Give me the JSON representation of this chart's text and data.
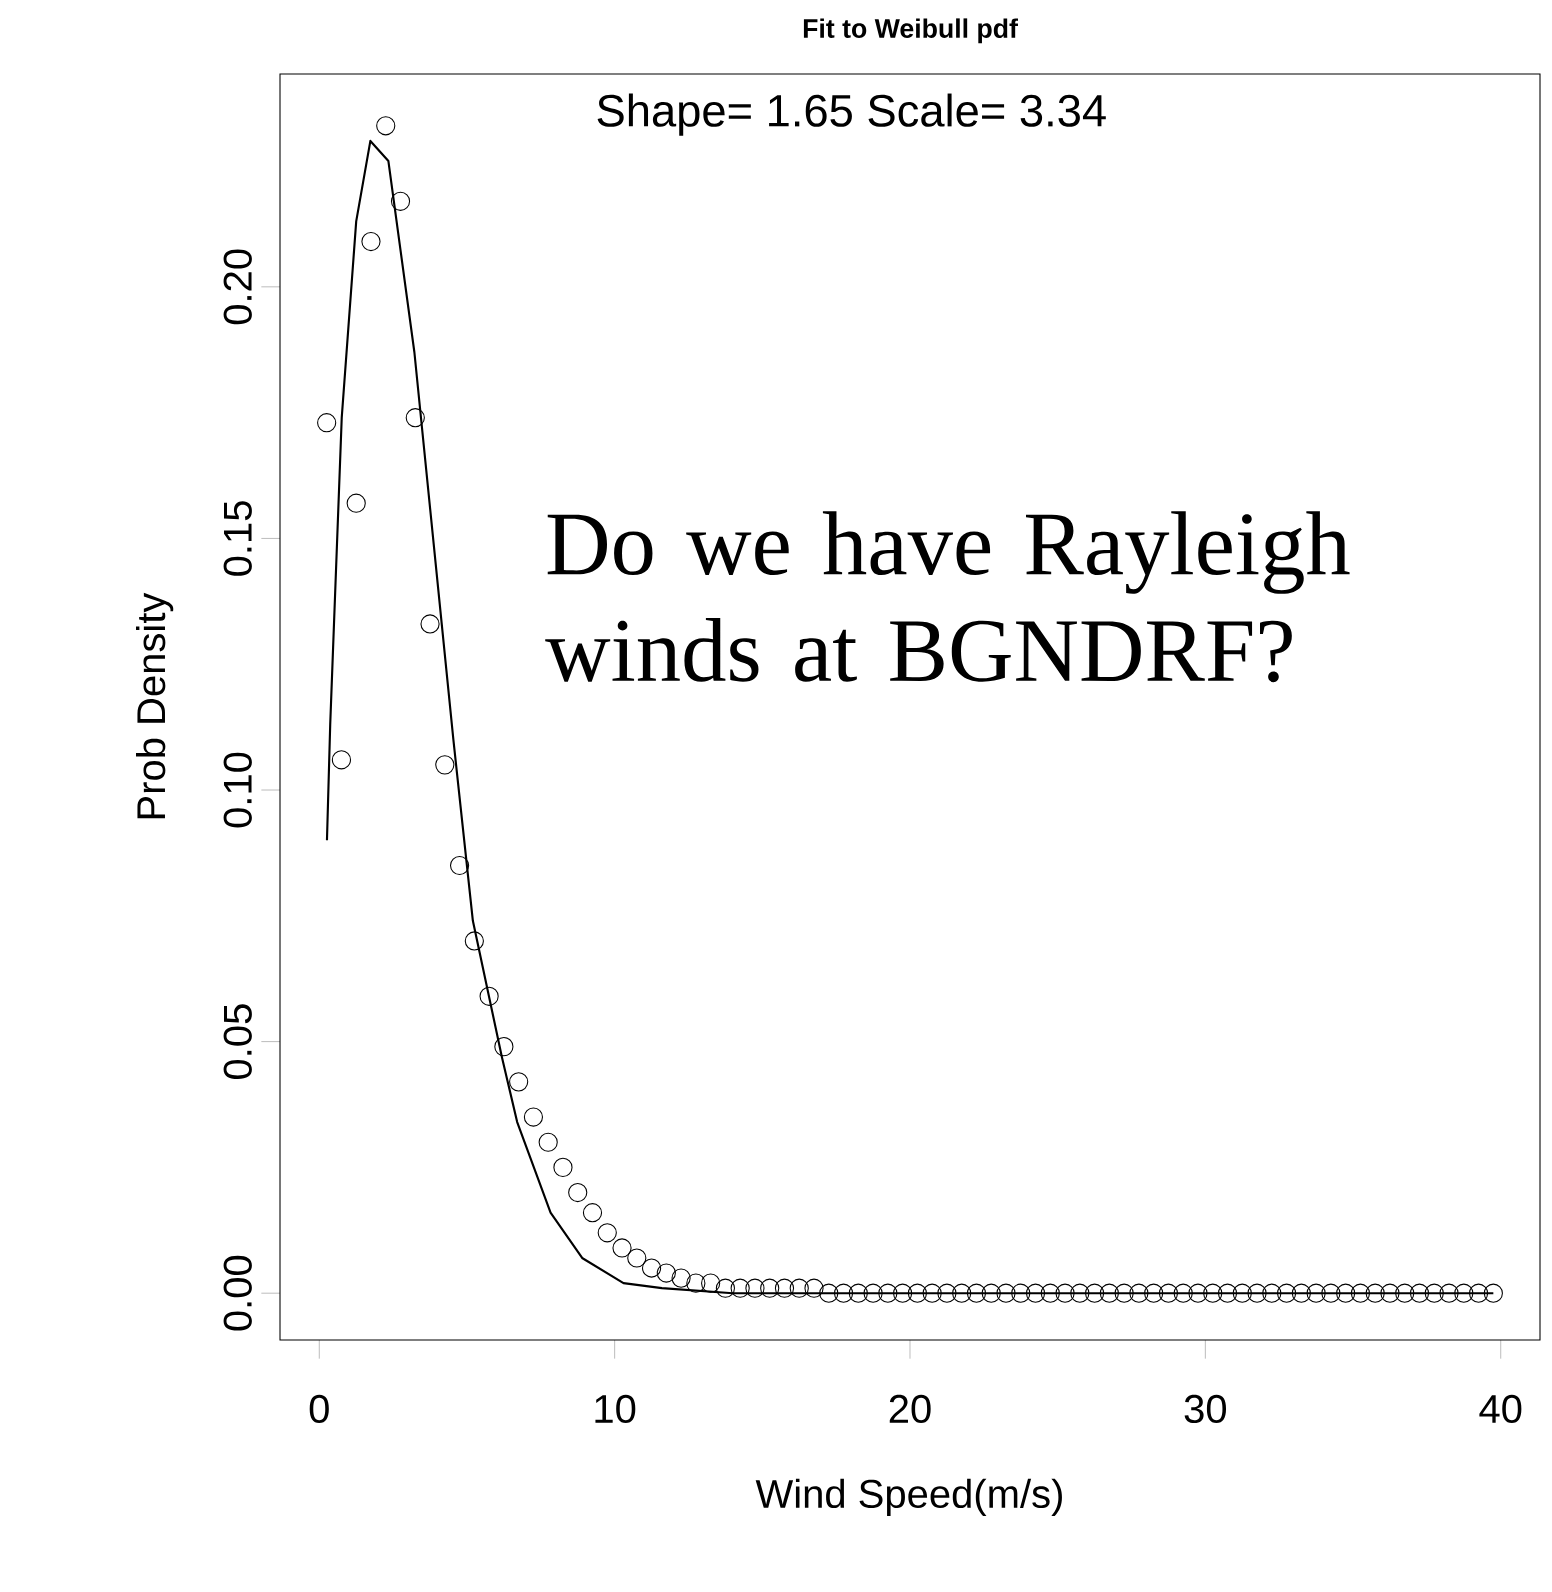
{
  "chart_data": {
    "type": "scatter",
    "title": "Fit to Weibull pdf",
    "xlabel": "Wind Speed(m/s)",
    "ylabel": "Prob Density",
    "annotations": [
      "Shape= 1.65 Scale= 3.34",
      "Do we have Rayleigh winds at BGNDRF?"
    ],
    "xlim": [
      -1.33,
      41.33
    ],
    "ylim": [
      -0.0093,
      0.2423
    ],
    "xticks": [
      0,
      10,
      20,
      30,
      40
    ],
    "yticks": [
      {
        "value": 0,
        "label": "0.00"
      },
      {
        "value": 0.05,
        "label": "0.05"
      },
      {
        "value": 0.1,
        "label": "0.10"
      },
      {
        "value": 0.15,
        "label": "0.15"
      },
      {
        "value": 0.2,
        "label": "0.20"
      }
    ],
    "marker": "circle",
    "series": [
      {
        "color": "#000000",
        "x": [
          0.25,
          0.75,
          1.25,
          1.75,
          2.25,
          2.75,
          3.25,
          3.75,
          4.25,
          4.75,
          5.25,
          5.75,
          6.25,
          6.75,
          7.25,
          7.75,
          8.25,
          8.75,
          9.25,
          9.75,
          10.25,
          10.75,
          11.25,
          11.75,
          12.25,
          12.75,
          13.25,
          13.75,
          14.25,
          14.75,
          15.25,
          15.75,
          16.25,
          16.75,
          17.25,
          17.75,
          18.25,
          18.75,
          19.25,
          19.75,
          20.25,
          20.75,
          21.25,
          21.75,
          22.25,
          22.75,
          23.25,
          23.75,
          24.25,
          24.75,
          25.25,
          25.75,
          26.25,
          26.75,
          27.25,
          27.75,
          28.25,
          28.75,
          29.25,
          29.75,
          30.25,
          30.75,
          31.25,
          31.75,
          32.25,
          32.75,
          33.25,
          33.75,
          34.25,
          34.75,
          35.25,
          35.75,
          36.25,
          36.75,
          37.25,
          37.75,
          38.25,
          38.75,
          39.25,
          39.75
        ],
        "values": [
          0.173,
          0.106,
          0.157,
          0.209,
          0.232,
          0.217,
          0.174,
          0.133,
          0.105,
          0.085,
          0.07,
          0.059,
          0.049,
          0.042,
          0.035,
          0.03,
          0.025,
          0.02,
          0.016,
          0.012,
          0.009,
          0.007,
          0.005,
          0.004,
          0.003,
          0.002,
          0.002,
          0.001,
          0.001,
          0.001,
          0.001,
          0.001,
          0.001,
          0.001,
          0,
          0,
          0,
          0,
          0,
          0,
          0,
          0,
          0,
          0,
          0,
          0,
          0,
          0,
          0,
          0,
          0,
          0,
          0,
          0,
          0,
          0,
          0,
          0,
          0,
          0,
          0,
          0,
          0,
          0,
          0,
          0,
          0,
          0,
          0,
          0,
          0,
          0,
          0,
          0,
          0,
          0,
          0,
          0,
          0,
          0
        ]
      },
      {
        "type": "line",
        "color": "#000000",
        "marker": "none",
        "x": [
          0.26,
          0.37,
          0.76,
          1.25,
          1.73,
          2.34,
          3.22,
          4.54,
          5.2,
          6.18,
          6.7,
          7.83,
          8.9,
          10.3,
          11.6,
          14,
          20,
          30,
          39.75
        ],
        "values": [
          0.09,
          0.113,
          0.174,
          0.213,
          0.229,
          0.225,
          0.187,
          0.11,
          0.074,
          0.047,
          0.034,
          0.016,
          0.007,
          0.002,
          0.001,
          0,
          0,
          0,
          0
        ]
      }
    ]
  }
}
